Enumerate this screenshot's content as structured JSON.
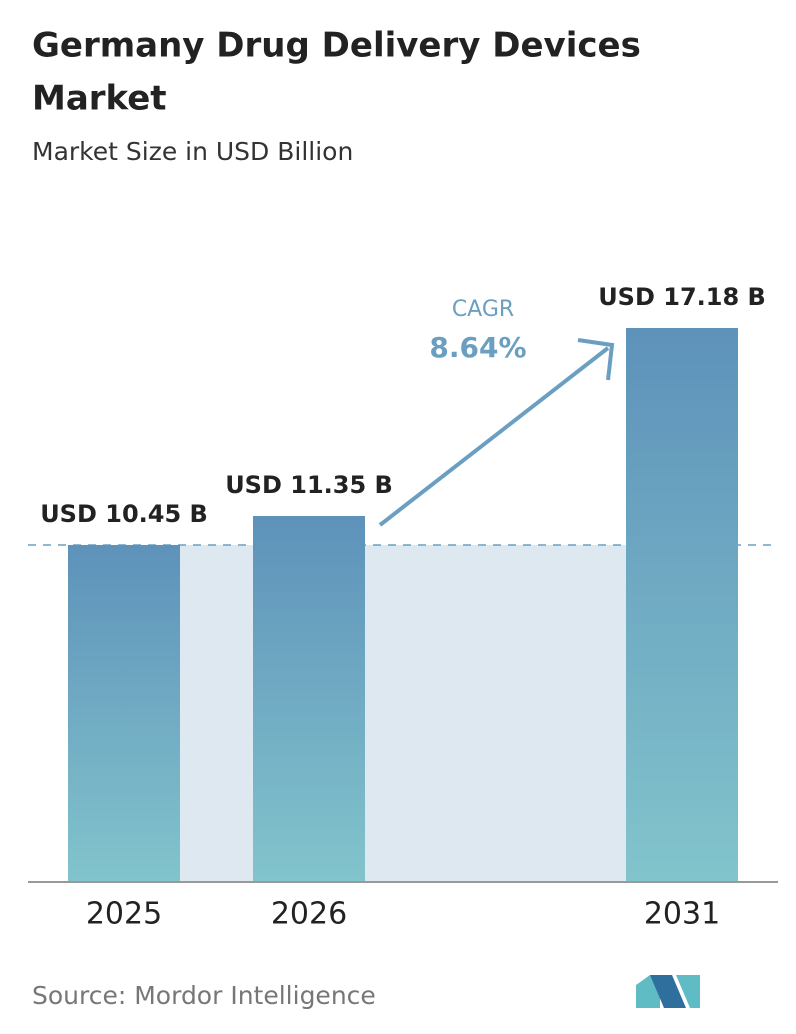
{
  "chart_data": {
    "type": "bar",
    "title": [
      "Germany Drug Delivery Devices",
      "Market"
    ],
    "subtitle": "Market Size in USD Billion",
    "categories": [
      "2025",
      "2026",
      "2031"
    ],
    "values": [
      10.45,
      11.35,
      17.18
    ],
    "value_labels": [
      "USD 10.45 B",
      "USD 11.35 B",
      "USD 17.18 B"
    ],
    "color": "#5e92ba",
    "cagr_label": "CAGR",
    "cagr": "8.64%",
    "source": "Source:  Mordor Intelligence"
  }
}
